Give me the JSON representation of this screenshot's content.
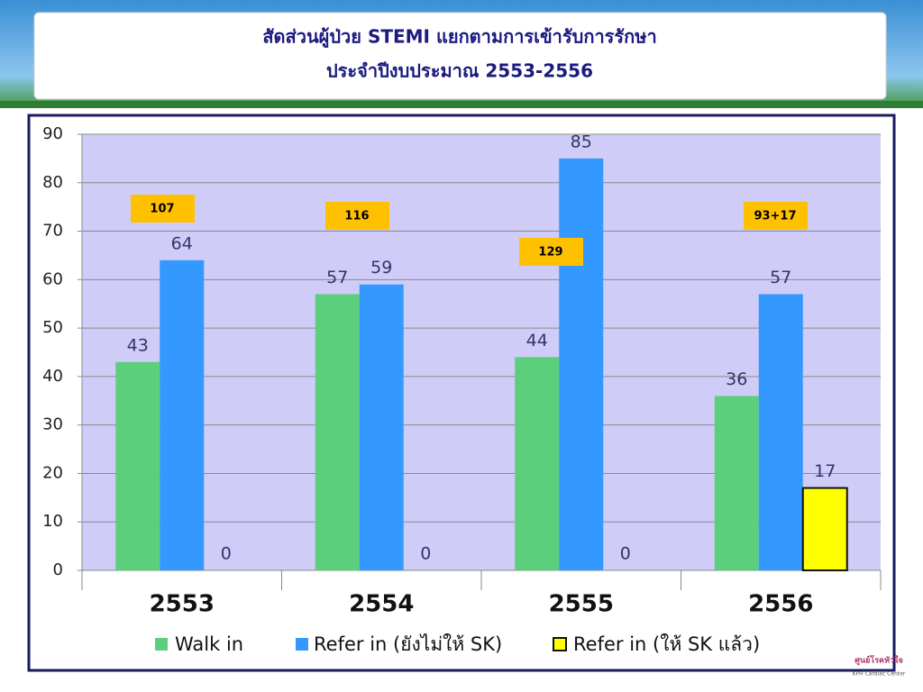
{
  "chart_data": {
    "type": "bar",
    "title": "สัดส่วนผู้ป่วย STEMI แยกตามการเข้ารับการรักษา",
    "subtitle": "ประจำปีงบประมาณ 2553-2556",
    "categories": [
      "2553",
      "2554",
      "2555",
      "2556"
    ],
    "series": [
      {
        "name": "Walk in",
        "color": "#5ccf7d",
        "values": [
          43,
          57,
          44,
          36
        ]
      },
      {
        "name": "Refer in (ยังไม่ให้ SK)",
        "color": "#3399ff",
        "values": [
          64,
          59,
          85,
          57
        ]
      },
      {
        "name": "Refer in (ให้ SK แล้ว)",
        "color": "#ffff00",
        "values": [
          0,
          0,
          0,
          17
        ]
      }
    ],
    "annotations": [
      "107",
      "116",
      "129",
      "93+17"
    ],
    "ylim": [
      0,
      90
    ],
    "yticks": [
      0,
      10,
      20,
      30,
      40,
      50,
      60,
      70,
      80,
      90
    ],
    "grid": true,
    "legend": "bottom",
    "logo": {
      "title": "ศูนย์โรคหัวใจ",
      "subtitle": "KPH Cardiac Center"
    }
  }
}
